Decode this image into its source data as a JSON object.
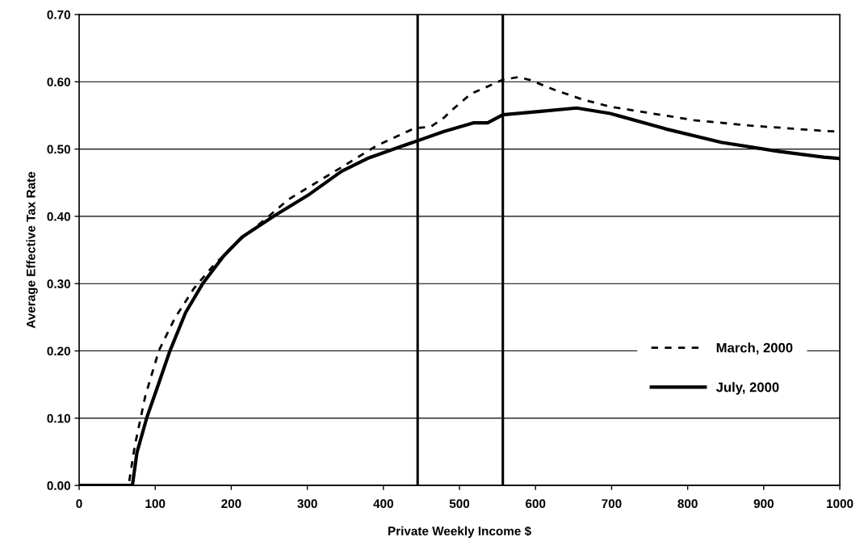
{
  "chart_data": {
    "type": "line",
    "xlabel": "Private Weekly Income $",
    "ylabel": "Average Effective Tax Rate",
    "xlim": [
      0,
      1000
    ],
    "xticks": [
      0,
      100,
      200,
      300,
      400,
      500,
      600,
      700,
      800,
      900,
      1000
    ],
    "ylim": [
      0,
      0.7
    ],
    "yticks": [
      {
        "value": 0,
        "label": "0.00"
      },
      {
        "value": 0.1,
        "label": "0.10"
      },
      {
        "value": 0.2,
        "label": "0.20"
      },
      {
        "value": 0.3,
        "label": "0.30"
      },
      {
        "value": 0.4,
        "label": "0.40"
      },
      {
        "value": 0.5,
        "label": "0.50"
      },
      {
        "value": 0.6,
        "label": "0.60"
      },
      {
        "value": 0.7,
        "label": "0.70"
      }
    ],
    "grid": "y",
    "legend": "lower right",
    "marker": "none",
    "ref_lines": [
      {
        "axis": "x",
        "value": 445,
        "color": "#000000",
        "line_style": "solid"
      },
      {
        "axis": "x",
        "value": 557,
        "color": "#000000",
        "line_style": "solid"
      }
    ],
    "series": [
      {
        "name": "March, 2000",
        "color": "#000000",
        "line_style": "dashed",
        "x": [
          0,
          65,
          73,
          87,
          105,
          126,
          151,
          175,
          204,
          246,
          275,
          345,
          391,
          441,
          462,
          480,
          489,
          515,
          557,
          577,
          592,
          625,
          661,
          698,
          753,
          808,
          881,
          979,
          1000
        ],
        "values": [
          0,
          0,
          0.058,
          0.133,
          0.201,
          0.249,
          0.293,
          0.325,
          0.358,
          0.397,
          0.425,
          0.473,
          0.505,
          0.531,
          0.533,
          0.547,
          0.557,
          0.582,
          0.603,
          0.607,
          0.603,
          0.588,
          0.574,
          0.563,
          0.553,
          0.543,
          0.535,
          0.527,
          0.526
        ]
      },
      {
        "name": "July, 2000",
        "color": "#000000",
        "line_style": "solid",
        "x": [
          0,
          70,
          76,
          89,
          105,
          119,
          140,
          163,
          190,
          214,
          257,
          303,
          345,
          381,
          416,
          444,
          479,
          519,
          537,
          557,
          607,
          654,
          698,
          771,
          844,
          917,
          979,
          1000
        ],
        "values": [
          0,
          0,
          0.049,
          0.101,
          0.153,
          0.199,
          0.257,
          0.301,
          0.341,
          0.369,
          0.401,
          0.433,
          0.467,
          0.487,
          0.501,
          0.512,
          0.526,
          0.539,
          0.539,
          0.551,
          0.556,
          0.561,
          0.553,
          0.53,
          0.51,
          0.497,
          0.488,
          0.486
        ]
      }
    ]
  }
}
